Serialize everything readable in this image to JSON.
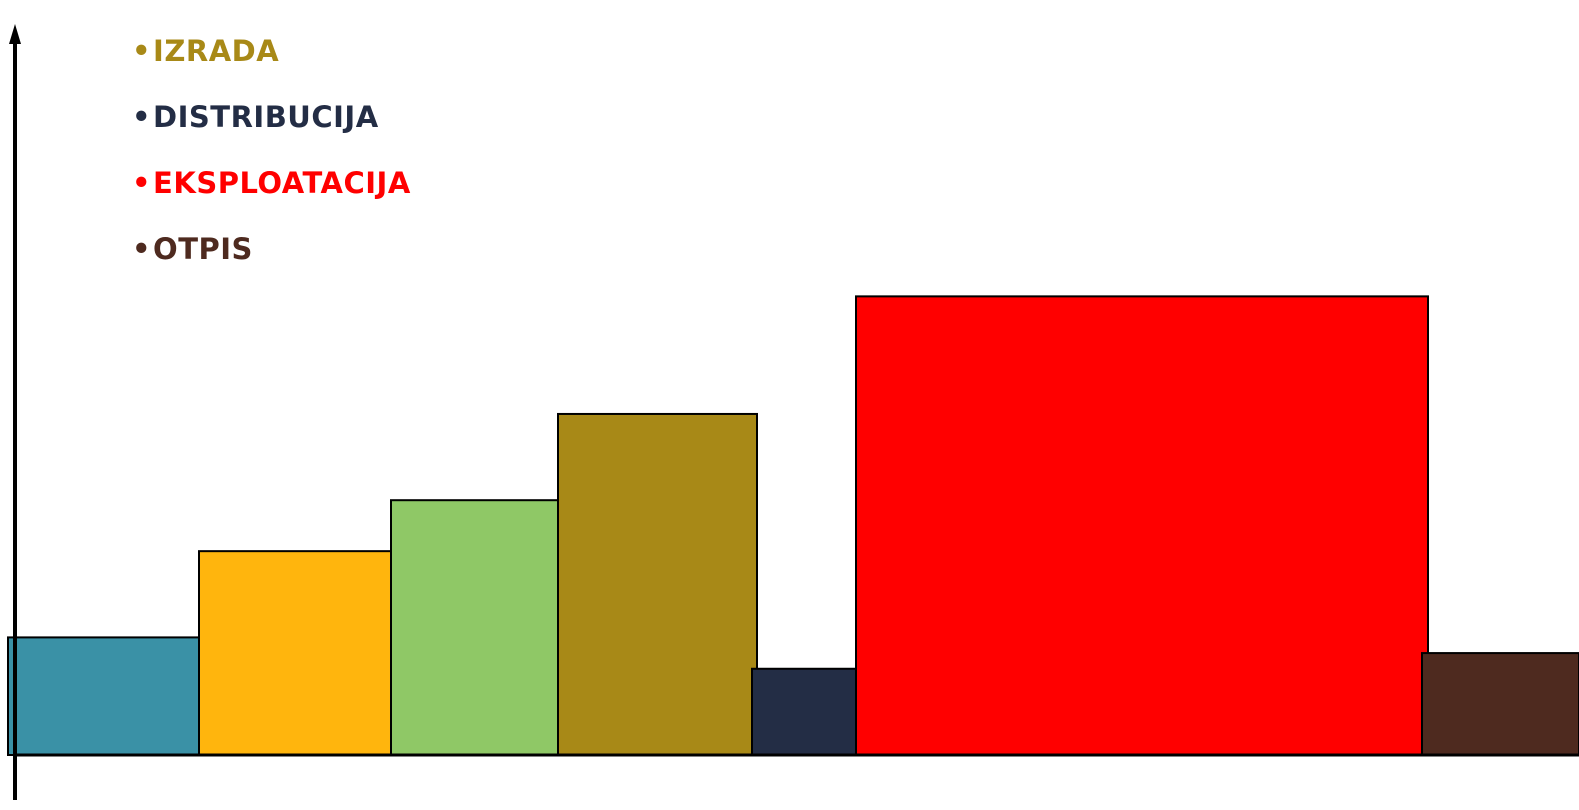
{
  "legend": {
    "items": [
      {
        "label": "IZRADA",
        "color": "#A88917"
      },
      {
        "label": "DISTRIBUCIJA",
        "color": "#232D45"
      },
      {
        "label": "EKSPLOATACIJA",
        "color": "#FF0000"
      },
      {
        "label": "OTPIS",
        "color": "#4E2A1F"
      }
    ],
    "bullet": "•"
  },
  "blocks": [
    {
      "color": "#3A91A6",
      "level": 0.3
    },
    {
      "color": "#FFB50D",
      "level": 0.52
    },
    {
      "color": "#8FC866",
      "level": 0.65
    },
    {
      "color": "#A88917",
      "level": 0.87
    },
    {
      "color": "#232D45",
      "level": 0.22
    },
    {
      "color": "#FF0000",
      "level": 1.17
    },
    {
      "color": "#4E2A1F",
      "level": 0.26
    }
  ]
}
